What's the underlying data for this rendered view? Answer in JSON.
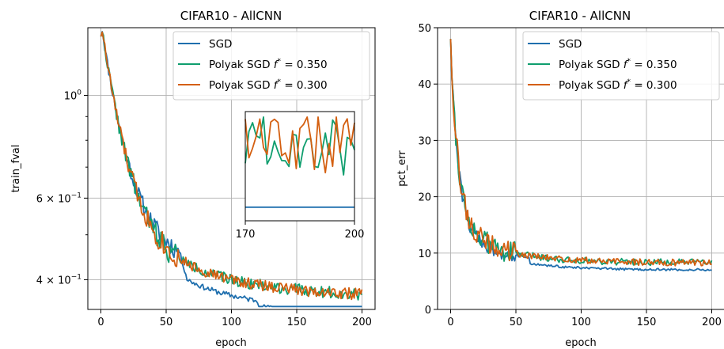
{
  "figure": {
    "colors": {
      "sgd": "#1f6fae",
      "polyak_035": "#0f9e6e",
      "polyak_030": "#d45f10",
      "grid": "#b0b0b0",
      "axis": "#000000"
    }
  },
  "chart_data": [
    {
      "type": "line",
      "title": "CIFAR10 - AllCNN",
      "xlabel": "epoch",
      "ylabel": "train_fval",
      "yscale": "log",
      "xlim": [
        -10,
        210
      ],
      "ylim": [
        0.345,
        1.4
      ],
      "xticks": [
        "0",
        "50",
        "100",
        "150",
        "200"
      ],
      "yticks": [
        {
          "value": 1.0,
          "base": "10",
          "exp": "0",
          "prefix": ""
        },
        {
          "value": 0.6,
          "base": "10",
          "exp": "−1",
          "prefix": "6 × "
        },
        {
          "value": 0.4,
          "base": "10",
          "exp": "−1",
          "prefix": "4 × "
        }
      ],
      "grid": true,
      "legend": {
        "placement": "top-right",
        "entries": [
          "SGD",
          "Polyak SGD f* = 0.350",
          "Polyak SGD f* = 0.300"
        ]
      },
      "series": [
        {
          "name": "SGD",
          "color": "#1f6fae"
        },
        {
          "name": "Polyak SGD f* = 0.350",
          "color": "#0f9e6e"
        },
        {
          "name": "Polyak SGD f* = 0.300",
          "color": "#d45f10"
        }
      ],
      "inset": {
        "xlim": [
          170,
          200
        ],
        "xticks": [
          "170",
          "200"
        ],
        "ylim": [
          0.345,
          0.385
        ]
      }
    },
    {
      "type": "line",
      "title": "CIFAR10 - AllCNN",
      "xlabel": "epoch",
      "ylabel": "pct_err",
      "yscale": "linear",
      "xlim": [
        -10,
        210
      ],
      "ylim": [
        0,
        50
      ],
      "xticks": [
        "0",
        "50",
        "100",
        "150",
        "200"
      ],
      "yticks": [
        "0",
        "10",
        "20",
        "30",
        "40",
        "50"
      ],
      "grid": true,
      "legend": {
        "placement": "top-right",
        "entries": [
          "SGD",
          "Polyak SGD f* = 0.350",
          "Polyak SGD f* = 0.300"
        ]
      },
      "series": [
        {
          "name": "SGD",
          "color": "#1f6fae"
        },
        {
          "name": "Polyak SGD f* = 0.350",
          "color": "#0f9e6e"
        },
        {
          "name": "Polyak SGD f* = 0.300",
          "color": "#d45f10"
        }
      ]
    }
  ]
}
